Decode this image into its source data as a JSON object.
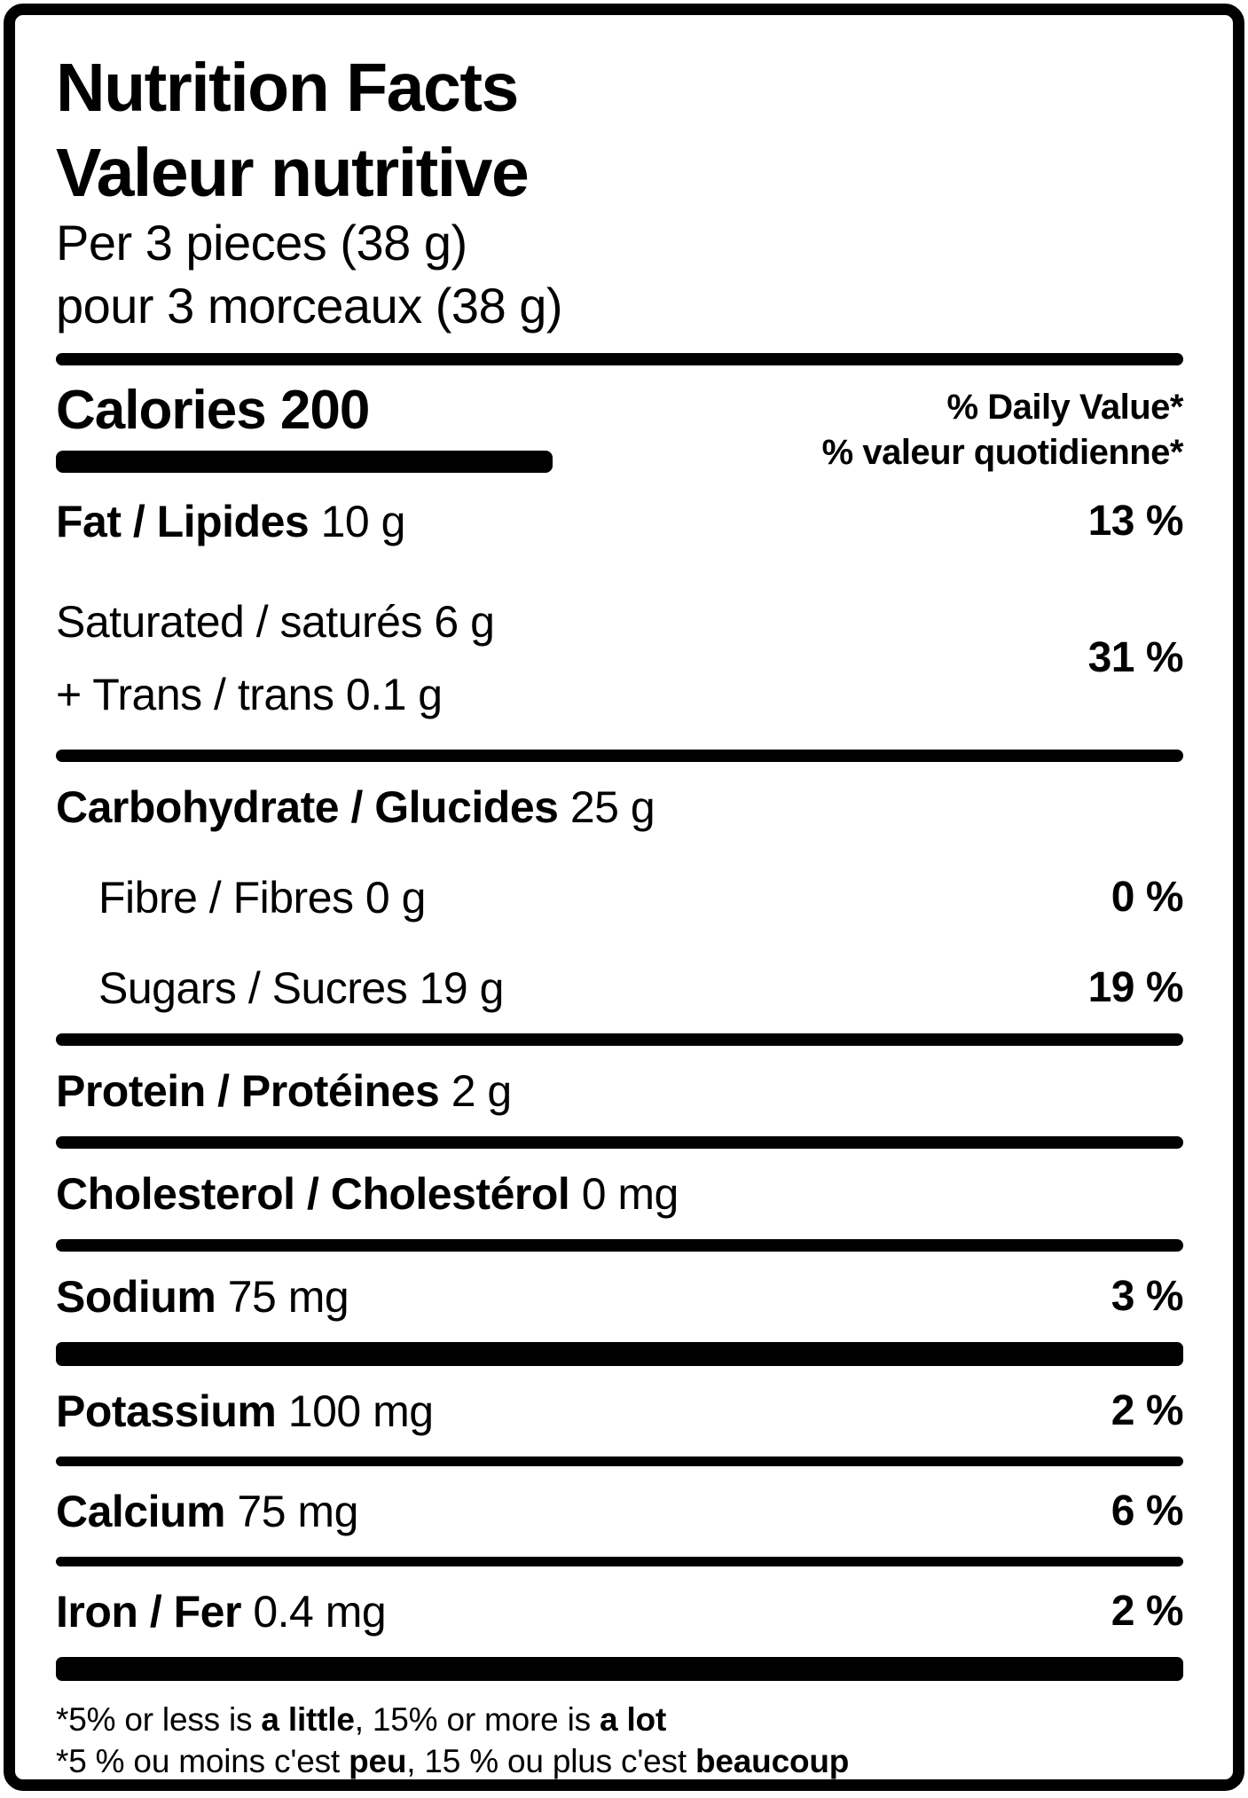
{
  "colors": {
    "ink": "#000000",
    "paper": "#ffffff"
  },
  "header": {
    "title_en": "Nutrition Facts",
    "title_fr": "Valeur nutritive",
    "serving_en": "Per 3 pieces (38 g)",
    "serving_fr": "pour 3 morceaux (38 g)"
  },
  "calories": {
    "label": "Calories",
    "value": "200"
  },
  "dv_header": {
    "en": "% Daily Value*",
    "fr": "% valeur quotidienne*"
  },
  "nutrients": {
    "fat": {
      "name": "Fat / Lipides",
      "amount": "10 g",
      "percent": "13 %"
    },
    "saturated": {
      "name": "Saturated / saturés",
      "amount": "6 g"
    },
    "trans": {
      "name": "+ Trans / trans",
      "amount": "0.1 g"
    },
    "sat_trans_percent": "31 %",
    "carbohydrate": {
      "name": "Carbohydrate / Glucides",
      "amount": "25 g"
    },
    "fibre": {
      "name": "Fibre / Fibres",
      "amount": "0 g",
      "percent": "0 %"
    },
    "sugars": {
      "name": "Sugars / Sucres",
      "amount": "19 g",
      "percent": "19 %"
    },
    "protein": {
      "name": "Protein / Protéines",
      "amount": "2 g"
    },
    "cholesterol": {
      "name": "Cholesterol / Cholestérol",
      "amount": "0 mg"
    },
    "sodium": {
      "name": "Sodium",
      "amount": "75 mg",
      "percent": "3 %"
    },
    "potassium": {
      "name": "Potassium",
      "amount": "100 mg",
      "percent": "2 %"
    },
    "calcium": {
      "name": "Calcium",
      "amount": "75 mg",
      "percent": "6 %"
    },
    "iron": {
      "name": "Iron / Fer",
      "amount": "0.4 mg",
      "percent": "2 %"
    }
  },
  "footnote": {
    "en": {
      "pre": "*5% or less is ",
      "bold1": "a little",
      "mid": ", 15% or more is ",
      "bold2": "a lot"
    },
    "fr": {
      "pre": "*5 % ou moins c'est ",
      "bold1": "peu",
      "mid": ", 15 % ou plus c'est ",
      "bold2": "beaucoup"
    }
  }
}
